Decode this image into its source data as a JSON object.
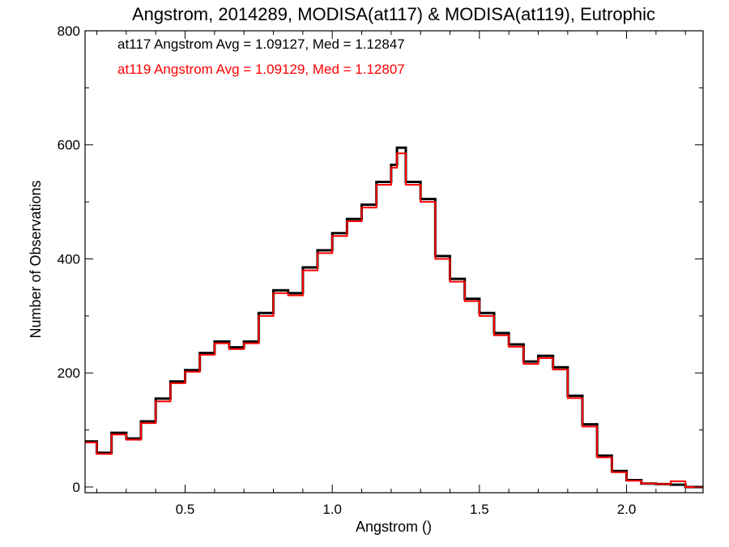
{
  "chart_data": {
    "type": "line",
    "title": "Angstrom, 2014289, MODISA(at117) & MODISA(at119), Eutrophic",
    "xlabel": "Angstrom ()",
    "ylabel": "Number of Observations",
    "xlim": [
      0.16,
      2.26
    ],
    "ylim": [
      -10,
      800
    ],
    "x_ticks": [
      0.5,
      1.0,
      1.5,
      2.0
    ],
    "x_tick_labels": [
      "0.5",
      "1.0",
      "1.5",
      "2.0"
    ],
    "y_ticks": [
      0,
      200,
      400,
      600,
      800
    ],
    "y_tick_labels": [
      "0",
      "200",
      "400",
      "600",
      "800"
    ],
    "step_style": "histogram",
    "series": [
      {
        "name": "at117",
        "color": "#000000",
        "annotation": "at117 Angstrom Avg = 1.09127, Med = 1.12847",
        "x": [
          0.16,
          0.2,
          0.25,
          0.3,
          0.35,
          0.4,
          0.45,
          0.5,
          0.55,
          0.6,
          0.65,
          0.7,
          0.75,
          0.8,
          0.85,
          0.9,
          0.95,
          1.0,
          1.05,
          1.1,
          1.15,
          1.2,
          1.22,
          1.25,
          1.3,
          1.35,
          1.4,
          1.45,
          1.5,
          1.55,
          1.6,
          1.65,
          1.7,
          1.75,
          1.8,
          1.85,
          1.9,
          1.95,
          2.0,
          2.05,
          2.1,
          2.15,
          2.2,
          2.26
        ],
        "values": [
          80,
          60,
          95,
          85,
          115,
          155,
          185,
          205,
          235,
          255,
          245,
          255,
          305,
          345,
          340,
          385,
          415,
          445,
          470,
          495,
          535,
          565,
          595,
          535,
          505,
          405,
          365,
          330,
          305,
          270,
          250,
          220,
          230,
          210,
          160,
          110,
          55,
          28,
          12,
          6,
          5,
          4,
          0,
          0
        ]
      },
      {
        "name": "at119",
        "color": "#ff0000",
        "annotation": "at119 Angstrom Avg = 1.09129, Med = 1.12807",
        "x": [
          0.16,
          0.2,
          0.25,
          0.3,
          0.35,
          0.4,
          0.45,
          0.5,
          0.55,
          0.6,
          0.65,
          0.7,
          0.75,
          0.8,
          0.85,
          0.9,
          0.95,
          1.0,
          1.05,
          1.1,
          1.15,
          1.2,
          1.22,
          1.25,
          1.3,
          1.35,
          1.4,
          1.45,
          1.5,
          1.55,
          1.6,
          1.65,
          1.7,
          1.75,
          1.8,
          1.85,
          1.9,
          1.95,
          2.0,
          2.05,
          2.1,
          2.15,
          2.2,
          2.26
        ],
        "values": [
          78,
          58,
          92,
          83,
          112,
          150,
          182,
          202,
          232,
          252,
          242,
          252,
          300,
          340,
          336,
          380,
          410,
          440,
          466,
          490,
          530,
          560,
          585,
          530,
          500,
          400,
          360,
          326,
          300,
          266,
          246,
          216,
          226,
          206,
          156,
          106,
          52,
          26,
          11,
          6,
          5,
          10,
          0,
          0
        ]
      }
    ]
  }
}
